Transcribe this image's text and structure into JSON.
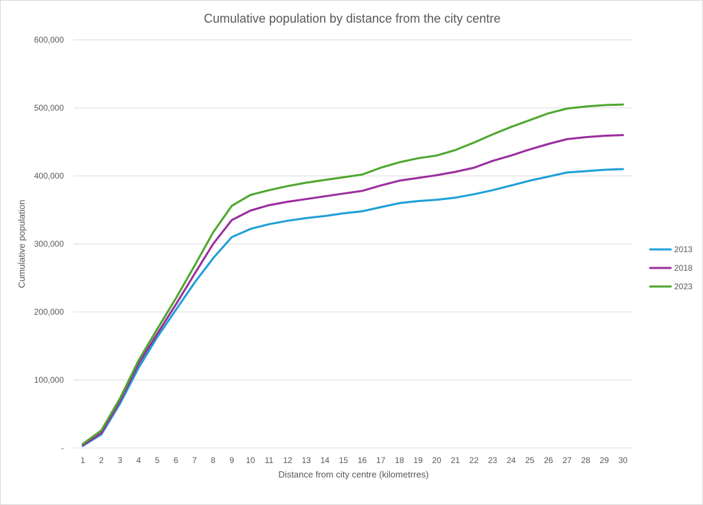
{
  "chart_data": {
    "type": "line",
    "title": "Cumulative population by distance from the city centre",
    "xlabel": "Distance from city centre (kilometrres)",
    "ylabel": "Cumulative population",
    "ylim": [
      0,
      600000
    ],
    "yticks": [
      0,
      100000,
      200000,
      300000,
      400000,
      500000,
      600000
    ],
    "ytick_labels": [
      "-",
      "100,000",
      "200,000",
      "300,000",
      "400,000",
      "500,000",
      "600,000"
    ],
    "grid": true,
    "legend_position": "right",
    "categories": [
      "1",
      "2",
      "3",
      "4",
      "5",
      "6",
      "7",
      "8",
      "9",
      "10",
      "11",
      "12",
      "13",
      "14",
      "15",
      "16",
      "17",
      "18",
      "19",
      "20",
      "21",
      "22",
      "23",
      "24",
      "25",
      "26",
      "27",
      "28",
      "29",
      "30"
    ],
    "series": [
      {
        "name": "2013",
        "color": "#1f9fd8",
        "values": [
          3000,
          20000,
          65000,
          118000,
          163000,
          203000,
          243000,
          279000,
          310000,
          322000,
          329000,
          334000,
          338000,
          341000,
          345000,
          348000,
          354000,
          360000,
          363000,
          365000,
          368000,
          373000,
          379000,
          386000,
          393000,
          399000,
          405000,
          407000,
          409000,
          410000
        ]
      },
      {
        "name": "2018",
        "color": "#9b2d9e",
        "values": [
          4000,
          22000,
          69000,
          124000,
          168000,
          211000,
          256000,
          300000,
          335000,
          349000,
          357000,
          362000,
          366000,
          370000,
          374000,
          378000,
          386000,
          393000,
          397000,
          401000,
          406000,
          412000,
          422000,
          430000,
          439000,
          447000,
          454000,
          457000,
          459000,
          460000
        ]
      },
      {
        "name": "2023",
        "color": "#4ea72e",
        "values": [
          6000,
          26000,
          73000,
          129000,
          175000,
          220000,
          268000,
          317000,
          356000,
          372000,
          379000,
          385000,
          390000,
          394000,
          398000,
          402000,
          412000,
          420000,
          426000,
          430000,
          438000,
          449000,
          461000,
          472000,
          482000,
          492000,
          499000,
          502000,
          504000,
          505000
        ]
      }
    ]
  }
}
